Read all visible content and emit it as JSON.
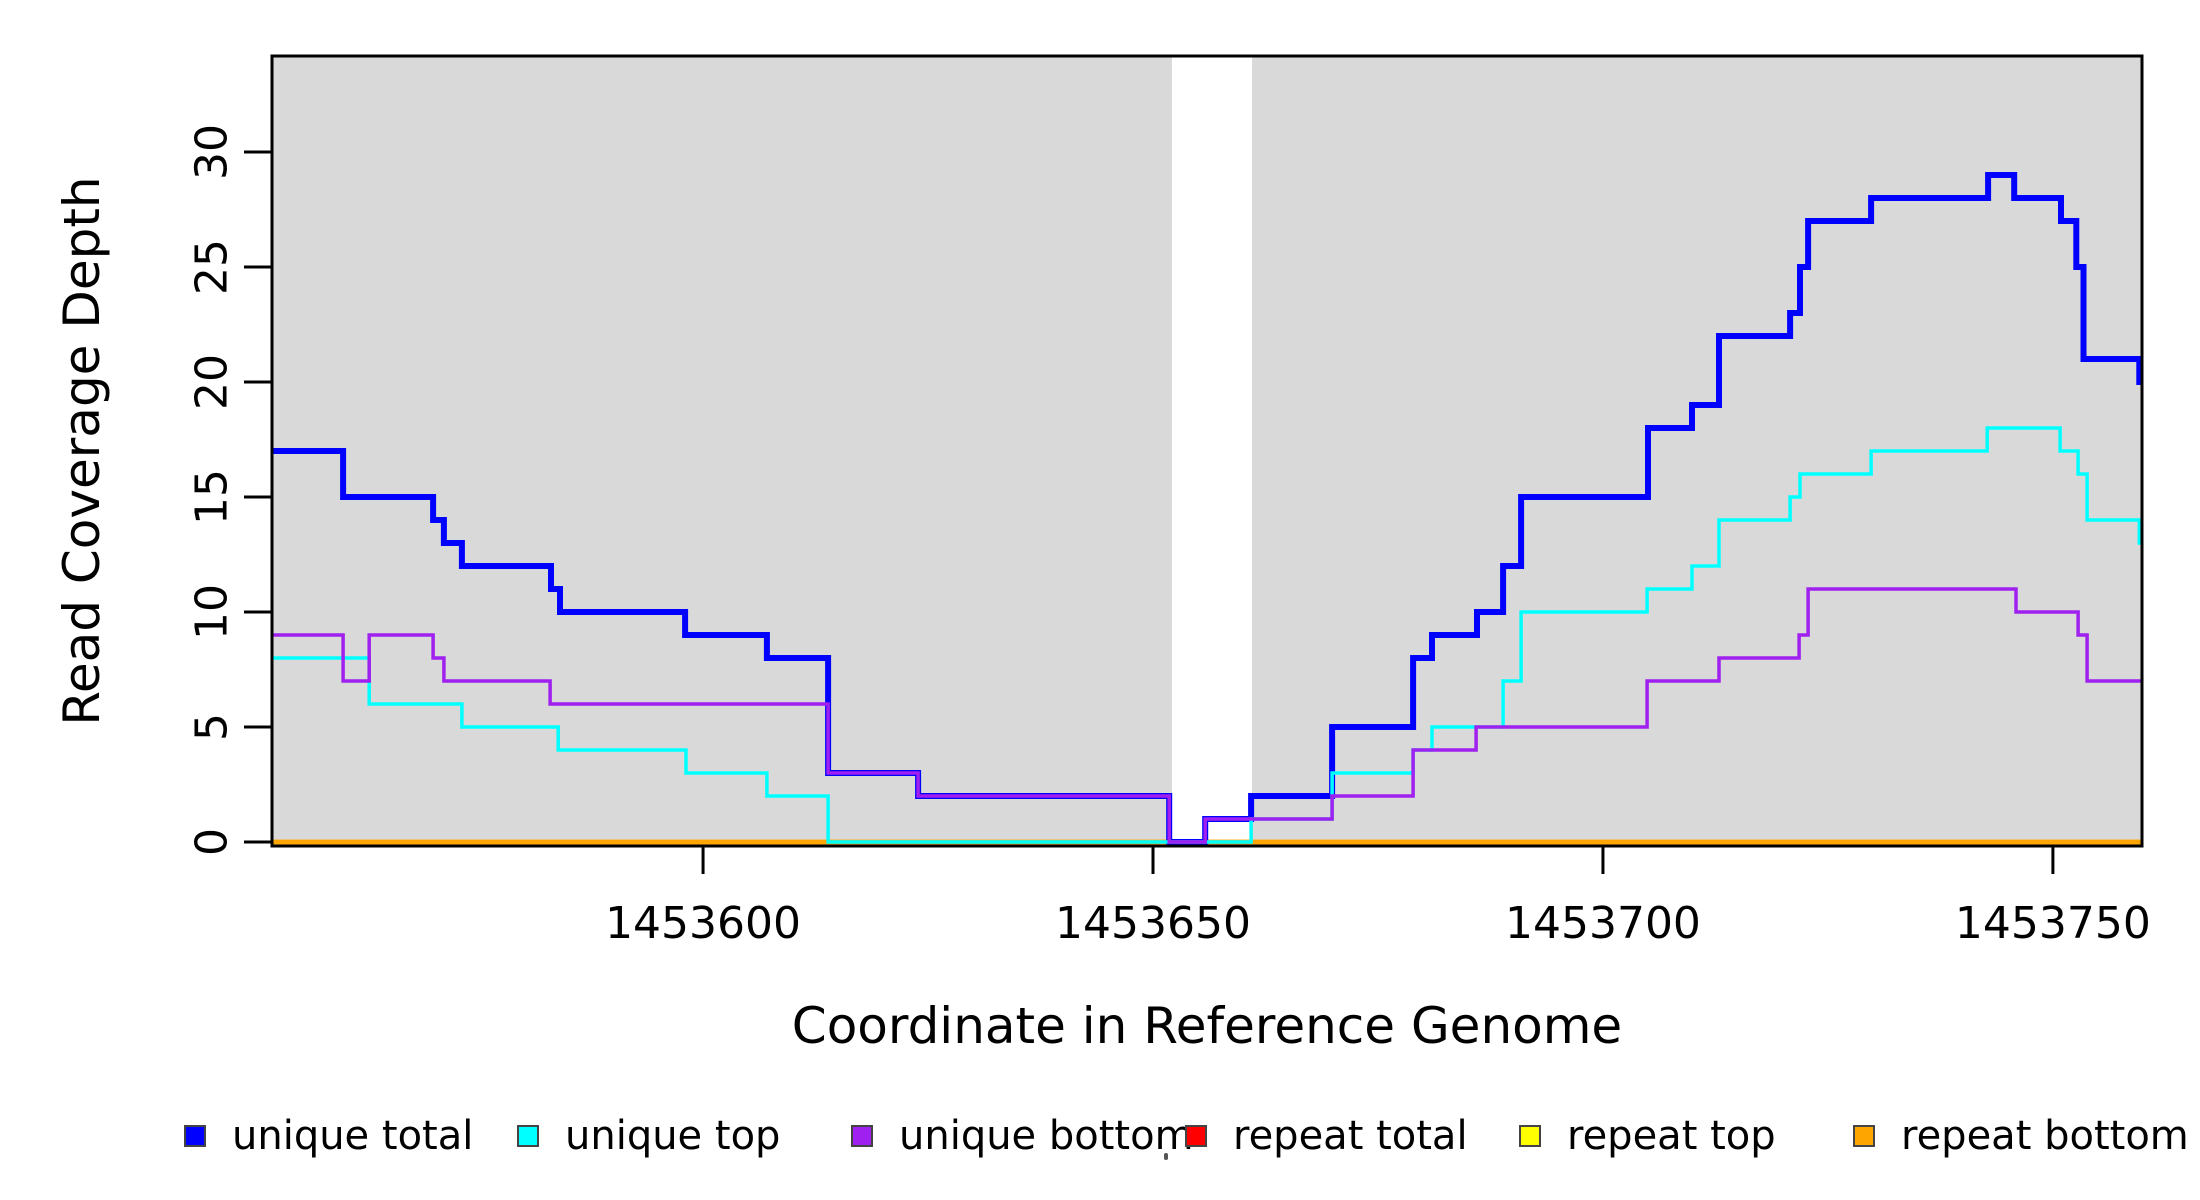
{
  "axes": {
    "x": {
      "label": "Coordinate in Reference Genome",
      "ticks": [
        "1453600",
        "1453650",
        "1453700",
        "1453750"
      ]
    },
    "y": {
      "label": "Read Coverage Depth",
      "ticks": [
        "0",
        "5",
        "10",
        "15",
        "20",
        "25",
        "30"
      ]
    }
  },
  "legend": {
    "items": [
      {
        "label": "unique total",
        "color": "#0000FF"
      },
      {
        "label": "unique top",
        "color": "#00FFFF"
      },
      {
        "label": "unique bottom",
        "color": "#A020F0"
      },
      {
        "label": "repeat total",
        "color": "#FF0000"
      },
      {
        "label": "repeat top",
        "color": "#FFFF00"
      },
      {
        "label": "repeat bottom",
        "color": "#FFA500"
      }
    ]
  },
  "colors": {
    "plot_background": "#D9D9D9",
    "gap_band": "#FFFFFF",
    "frame": "#000000"
  },
  "chart_data": {
    "type": "line",
    "subtype": "step",
    "title": "",
    "xlabel": "Coordinate in Reference Genome",
    "ylabel": "Read Coverage Depth",
    "xlim": [
      1453552.1,
      1453759.9
    ],
    "ylim": [
      0,
      34.2
    ],
    "x_ticks": [
      1453600,
      1453650,
      1453700,
      1453750
    ],
    "y_ticks": [
      0,
      5,
      10,
      15,
      20,
      25,
      30
    ],
    "grid": false,
    "legend_position": "bottom",
    "plot_background": "#D9D9D9",
    "gap_band": {
      "from": 1453652.1,
      "to": 1453661.0,
      "color": "#FFFFFF"
    },
    "draw_order": [
      "repeat total",
      "repeat top",
      "repeat bottom",
      "unique total",
      "unique top",
      "unique bottom"
    ],
    "series": [
      {
        "name": "unique total",
        "color": "#0000FF",
        "width": 6,
        "steps": [
          [
            1453552,
            17
          ],
          [
            1453560,
            15
          ],
          [
            1453570,
            14
          ],
          [
            1453571.2,
            13
          ],
          [
            1453573.2,
            12
          ],
          [
            1453583.1,
            11
          ],
          [
            1453584.1,
            10
          ],
          [
            1453598,
            9
          ],
          [
            1453607.1,
            8
          ],
          [
            1453613.9,
            3
          ],
          [
            1453623.9,
            2
          ],
          [
            1453651.8,
            0
          ],
          [
            1453655.8,
            1
          ],
          [
            1453660.9,
            2
          ],
          [
            1453669.9,
            5
          ],
          [
            1453678.9,
            8
          ],
          [
            1453681,
            9
          ],
          [
            1453686,
            10
          ],
          [
            1453688.9,
            12
          ],
          [
            1453690.9,
            15
          ],
          [
            1453705,
            18
          ],
          [
            1453709.9,
            19
          ],
          [
            1453712.9,
            22
          ],
          [
            1453720.8,
            23
          ],
          [
            1453721.9,
            25
          ],
          [
            1453722.8,
            27
          ],
          [
            1453729.8,
            28
          ],
          [
            1453742.8,
            29
          ],
          [
            1453745.7,
            28
          ],
          [
            1453750.9,
            27
          ],
          [
            1453752.6,
            25
          ],
          [
            1453753.4,
            21
          ],
          [
            1453759.6,
            20
          ]
        ]
      },
      {
        "name": "unique top",
        "color": "#00FFFF",
        "width": 3.5,
        "steps": [
          [
            1453552,
            8
          ],
          [
            1453562.9,
            6
          ],
          [
            1453573.2,
            5
          ],
          [
            1453583.9,
            4
          ],
          [
            1453598.1,
            3
          ],
          [
            1453607.1,
            2
          ],
          [
            1453613.9,
            0
          ],
          [
            1453660.9,
            1
          ],
          [
            1453669.9,
            3
          ],
          [
            1453678.9,
            4
          ],
          [
            1453681,
            5
          ],
          [
            1453688.9,
            7
          ],
          [
            1453690.9,
            10
          ],
          [
            1453704.9,
            11
          ],
          [
            1453709.9,
            12
          ],
          [
            1453712.9,
            14
          ],
          [
            1453720.8,
            15
          ],
          [
            1453721.9,
            16
          ],
          [
            1453729.8,
            17
          ],
          [
            1453742.7,
            18
          ],
          [
            1453750.8,
            17
          ],
          [
            1453752.8,
            16
          ],
          [
            1453753.8,
            14
          ],
          [
            1453759.6,
            13
          ]
        ]
      },
      {
        "name": "unique bottom",
        "color": "#A020F0",
        "width": 3.5,
        "steps": [
          [
            1453552,
            9
          ],
          [
            1453560,
            7
          ],
          [
            1453562.9,
            9
          ],
          [
            1453570,
            8
          ],
          [
            1453571.2,
            7
          ],
          [
            1453583,
            6
          ],
          [
            1453613.9,
            3
          ],
          [
            1453623.9,
            2
          ],
          [
            1453651.8,
            0
          ],
          [
            1453655.8,
            1
          ],
          [
            1453669.9,
            2
          ],
          [
            1453678.9,
            4
          ],
          [
            1453685.9,
            5
          ],
          [
            1453704.9,
            7
          ],
          [
            1453712.9,
            8
          ],
          [
            1453721.8,
            9
          ],
          [
            1453722.8,
            11
          ],
          [
            1453745.9,
            10
          ],
          [
            1453752.8,
            9
          ],
          [
            1453753.8,
            7
          ]
        ]
      },
      {
        "name": "repeat total",
        "color": "#FF0000",
        "width": 4.5,
        "steps": [
          [
            1453552,
            0
          ]
        ]
      },
      {
        "name": "repeat top",
        "color": "#FFFF00",
        "width": 4.5,
        "steps": [
          [
            1453552,
            0
          ]
        ]
      },
      {
        "name": "repeat bottom",
        "color": "#FFA500",
        "width": 4.5,
        "steps": [
          [
            1453552,
            0
          ]
        ]
      }
    ]
  }
}
